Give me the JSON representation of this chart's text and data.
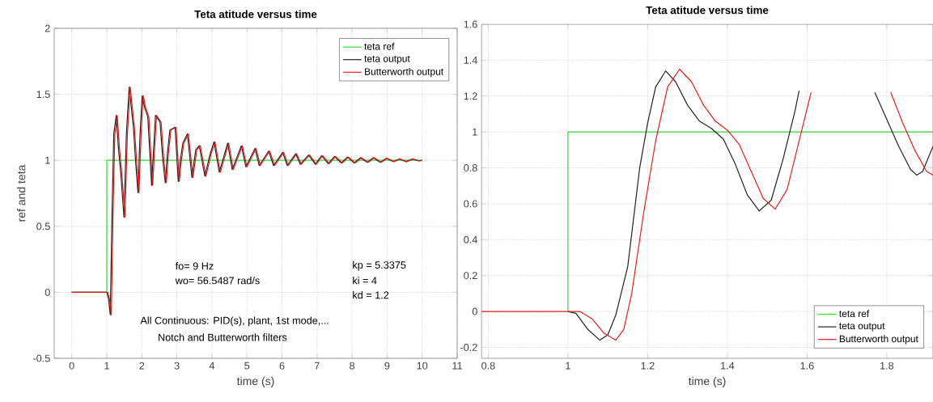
{
  "chart_data": [
    {
      "type": "line",
      "title": "Teta atitude versus time",
      "xlabel": "time (s)",
      "ylabel": "ref and teta",
      "xlim": [
        -0.5,
        11
      ],
      "ylim": [
        -0.5,
        2
      ],
      "xticks": [
        0,
        1,
        2,
        3,
        4,
        5,
        6,
        7,
        8,
        9,
        10,
        11
      ],
      "yticks": [
        -0.5,
        0,
        0.5,
        1,
        1.5,
        2
      ],
      "grid": true,
      "legend": "top right",
      "series": [
        {
          "name": "teta ref",
          "color": "#33dd33",
          "x": [
            0,
            1,
            1,
            10
          ],
          "values": [
            0,
            0,
            1,
            1
          ]
        },
        {
          "name": "teta output",
          "color": "#222222",
          "x": [
            0,
            1,
            1.05,
            1.1,
            1.15,
            1.2,
            1.27,
            1.33,
            1.4,
            1.49,
            1.56,
            1.64,
            1.7,
            1.76,
            1.82,
            1.89,
            1.95,
            2.01,
            2.08,
            2.17,
            2.28,
            2.34,
            2.39,
            2.52,
            2.6,
            2.67,
            2.73,
            2.8,
            2.95,
            3.04,
            3.1,
            3.17,
            3.3,
            3.43,
            3.54,
            3.64,
            3.8,
            3.95,
            4.06,
            4.21,
            4.45,
            4.58,
            4.84,
            4.97,
            5.23,
            5.35,
            5.62,
            5.76,
            6.02,
            6.15,
            6.39,
            6.52,
            6.76,
            6.95,
            7.13,
            7.32,
            7.5,
            7.69,
            7.87,
            8.06,
            8.24,
            8.43,
            8.61,
            8.8,
            8.98,
            9.17,
            9.35,
            9.54,
            9.72,
            9.9,
            10
          ],
          "values": [
            0,
            0,
            -0.05,
            -0.17,
            0.6,
            1.2,
            1.34,
            1.1,
            0.9,
            0.57,
            1.2,
            1.555,
            1.4,
            1.25,
            1.0,
            0.755,
            1.2,
            1.49,
            1.4,
            1.33,
            0.81,
            1.1,
            1.34,
            1.29,
            1.0,
            0.83,
            1.05,
            1.23,
            1.25,
            0.84,
            1.0,
            1.13,
            1.2,
            0.87,
            1.08,
            1.11,
            0.88,
            1.05,
            1.14,
            0.91,
            1.13,
            0.93,
            1.11,
            0.95,
            1.09,
            0.96,
            1.07,
            0.96,
            1.06,
            0.96,
            1.05,
            0.97,
            1.04,
            0.97,
            1.035,
            0.975,
            1.03,
            0.98,
            1.025,
            0.98,
            1.02,
            0.985,
            1.02,
            0.985,
            1.015,
            0.99,
            1.01,
            0.99,
            1.01,
            0.995,
            1.0
          ]
        },
        {
          "name": "Butterworth output",
          "color": "#e02020",
          "x": [
            0,
            1.03,
            1.08,
            1.13,
            1.18,
            1.23,
            1.3,
            1.36,
            1.43,
            1.52,
            1.59,
            1.67,
            1.73,
            1.79,
            1.85,
            1.92,
            1.98,
            2.04,
            2.11,
            2.2,
            2.31,
            2.37,
            2.42,
            2.55,
            2.63,
            2.7,
            2.76,
            2.83,
            2.98,
            3.07,
            3.13,
            3.2,
            3.33,
            3.46,
            3.57,
            3.67,
            3.83,
            3.98,
            4.09,
            4.24,
            4.48,
            4.61,
            4.87,
            5,
            5.26,
            5.38,
            5.65,
            5.79,
            6.05,
            6.18,
            6.42,
            6.55,
            6.79,
            6.98,
            7.16,
            7.35,
            7.53,
            7.72,
            7.9,
            8.09,
            8.27,
            8.46,
            8.64,
            8.83,
            9.01,
            9.2,
            9.38,
            9.57,
            9.75,
            9.93,
            10
          ],
          "values": [
            0,
            0,
            -0.05,
            -0.17,
            0.6,
            1.2,
            1.34,
            1.1,
            0.9,
            0.57,
            1.2,
            1.555,
            1.4,
            1.25,
            1.0,
            0.755,
            1.2,
            1.49,
            1.4,
            1.33,
            0.81,
            1.1,
            1.34,
            1.29,
            1.0,
            0.83,
            1.05,
            1.23,
            1.25,
            0.84,
            1.0,
            1.13,
            1.2,
            0.87,
            1.08,
            1.11,
            0.88,
            1.05,
            1.14,
            0.91,
            1.13,
            0.93,
            1.11,
            0.95,
            1.09,
            0.96,
            1.07,
            0.96,
            1.06,
            0.96,
            1.05,
            0.97,
            1.04,
            0.97,
            1.035,
            0.975,
            1.03,
            0.98,
            1.025,
            0.98,
            1.02,
            0.985,
            1.02,
            0.985,
            1.015,
            0.99,
            1.01,
            0.99,
            1.01,
            0.995,
            1.0
          ]
        }
      ],
      "annotations": [
        "fo=  9  Hz",
        "wo=  56.5487  rad/s",
        "kp =  5.3375",
        "ki =  4",
        "kd =  1.2",
        "All Continuous: PID(s), plant, 1st mode,...",
        "Notch and Butterworth filters"
      ]
    },
    {
      "type": "line",
      "title": "Teta atitude versus time",
      "xlabel": "time (s)",
      "xlim": [
        0.783,
        1.916
      ],
      "ylim": [
        -0.261,
        1.6
      ],
      "xticks": [
        0.8,
        1,
        1.2,
        1.4,
        1.6,
        1.8
      ],
      "yticks": [
        -0.2,
        0,
        0.2,
        0.4,
        0.6,
        0.8,
        1,
        1.2,
        1.4,
        1.6
      ],
      "grid": true,
      "legend": "bottom right",
      "series": [
        {
          "name": "teta ref",
          "color": "#33dd33",
          "x": [
            1,
            1,
            1.916
          ],
          "values": [
            0,
            1,
            1
          ]
        },
        {
          "name": "teta output",
          "color": "#222222",
          "x": [
            1,
            1.02,
            1.05,
            1.08,
            1.1,
            1.12,
            1.15,
            1.18,
            1.2,
            1.22,
            1.245,
            1.27,
            1.3,
            1.33,
            1.36,
            1.39,
            1.42,
            1.45,
            1.48,
            1.51,
            1.54,
            1.57,
            1.58,
            1.6,
            1.77,
            1.8,
            1.83,
            1.86,
            1.875,
            1.89,
            1.916
          ],
          "values": [
            0,
            -0.01,
            -0.1,
            -0.16,
            -0.13,
            -0.02,
            0.25,
            0.8,
            1.05,
            1.25,
            1.34,
            1.28,
            1.15,
            1.06,
            1.02,
            0.96,
            0.82,
            0.65,
            0.56,
            0.62,
            0.85,
            1.12,
            1.23,
            null,
            1.22,
            1.07,
            0.92,
            0.79,
            0.76,
            0.78,
            0.92
          ]
        },
        {
          "name": "Butterworth output",
          "color": "#e02020",
          "x": [
            0.783,
            1.03,
            1.06,
            1.09,
            1.12,
            1.14,
            1.16,
            1.19,
            1.22,
            1.25,
            1.28,
            1.31,
            1.34,
            1.37,
            1.4,
            1.43,
            1.46,
            1.49,
            1.52,
            1.55,
            1.58,
            1.61,
            1.63,
            1.81,
            1.84,
            1.87,
            1.9,
            1.916
          ],
          "values": [
            0,
            0,
            -0.04,
            -0.12,
            -0.16,
            -0.1,
            0.1,
            0.55,
            0.95,
            1.25,
            1.35,
            1.28,
            1.15,
            1.06,
            1.01,
            0.93,
            0.78,
            0.63,
            0.57,
            0.68,
            0.95,
            1.22,
            null,
            1.22,
            1.05,
            0.9,
            0.78,
            0.76
          ]
        }
      ]
    }
  ]
}
